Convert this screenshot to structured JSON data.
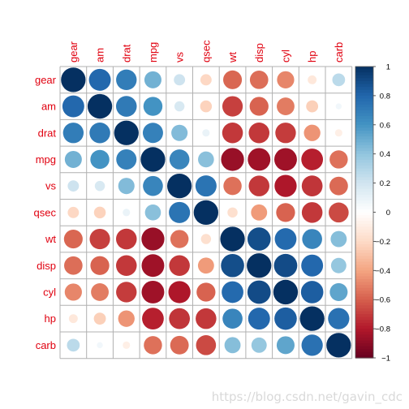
{
  "chart_data": {
    "type": "heatmap",
    "variables": [
      "gear",
      "am",
      "drat",
      "mpg",
      "vs",
      "qsec",
      "wt",
      "disp",
      "cyl",
      "hp",
      "carb"
    ],
    "matrix": [
      [
        1.0,
        0.79,
        0.7,
        0.48,
        0.21,
        -0.21,
        -0.58,
        -0.56,
        -0.49,
        -0.13,
        0.27
      ],
      [
        0.79,
        1.0,
        0.71,
        0.6,
        0.17,
        -0.23,
        -0.69,
        -0.59,
        -0.52,
        -0.24,
        0.06
      ],
      [
        0.7,
        0.71,
        1.0,
        0.68,
        0.44,
        0.09,
        -0.71,
        -0.71,
        -0.7,
        -0.45,
        -0.09
      ],
      [
        0.48,
        0.6,
        0.68,
        1.0,
        0.66,
        0.42,
        -0.87,
        -0.85,
        -0.85,
        -0.78,
        -0.55
      ],
      [
        0.21,
        0.17,
        0.44,
        0.66,
        1.0,
        0.74,
        -0.55,
        -0.71,
        -0.81,
        -0.72,
        -0.57
      ],
      [
        -0.21,
        -0.23,
        0.09,
        0.42,
        0.74,
        1.0,
        -0.17,
        -0.43,
        -0.59,
        -0.71,
        -0.66
      ],
      [
        -0.58,
        -0.69,
        -0.71,
        -0.87,
        -0.55,
        -0.17,
        1.0,
        0.89,
        0.78,
        0.66,
        0.43
      ],
      [
        -0.56,
        -0.59,
        -0.71,
        -0.85,
        -0.71,
        -0.43,
        0.89,
        1.0,
        0.9,
        0.79,
        0.39
      ],
      [
        -0.49,
        -0.52,
        -0.7,
        -0.85,
        -0.81,
        -0.59,
        0.78,
        0.9,
        1.0,
        0.83,
        0.53
      ],
      [
        -0.13,
        -0.24,
        -0.45,
        -0.78,
        -0.72,
        -0.71,
        0.66,
        0.79,
        0.83,
        1.0,
        0.75
      ],
      [
        0.27,
        0.06,
        -0.09,
        -0.55,
        -0.57,
        -0.66,
        0.43,
        0.39,
        0.53,
        0.75,
        1.0
      ]
    ],
    "colorbar_ticks": [
      "1",
      "0.8",
      "0.6",
      "0.4",
      "0.2",
      "0",
      "−0.2",
      "−0.4",
      "−0.6",
      "−0.8",
      "−1"
    ],
    "colorbar_range": [
      -1,
      1
    ],
    "color_stops": [
      "#67001F",
      "#B2182B",
      "#D6604D",
      "#F4A582",
      "#FDDBC7",
      "#FFFFFF",
      "#D1E5F0",
      "#92C5DE",
      "#4393C3",
      "#2166AC",
      "#053061"
    ],
    "label_color": "#e0000f",
    "grid": true
  },
  "watermark": "https://blog.csdn.net/gavin_cdc"
}
